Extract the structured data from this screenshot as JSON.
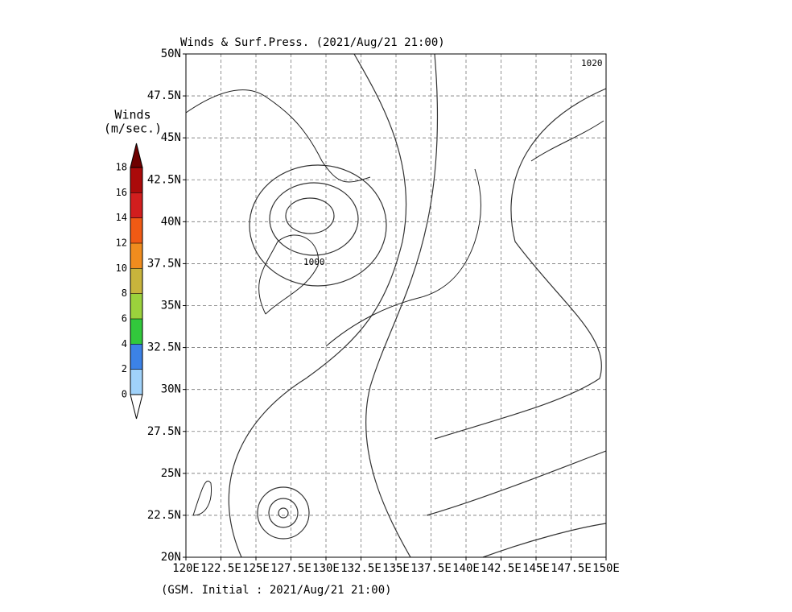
{
  "title": "Winds & Surf.Press. (2021/Aug/21 21:00)",
  "footer": "(GSM. Initial : 2021/Aug/21 21:00)",
  "map": {
    "xlim": [
      120,
      150
    ],
    "ylim": [
      20,
      50
    ],
    "xticks": [
      {
        "value": 120,
        "label": "120E"
      },
      {
        "value": 122.5,
        "label": "122.5E"
      },
      {
        "value": 125,
        "label": "125E"
      },
      {
        "value": 127.5,
        "label": "127.5E"
      },
      {
        "value": 130,
        "label": "130E"
      },
      {
        "value": 132.5,
        "label": "132.5E"
      },
      {
        "value": 135,
        "label": "135E"
      },
      {
        "value": 137.5,
        "label": "137.5E"
      },
      {
        "value": 140,
        "label": "140E"
      },
      {
        "value": 142.5,
        "label": "142.5E"
      },
      {
        "value": 145,
        "label": "145E"
      },
      {
        "value": 147.5,
        "label": "147.5E"
      },
      {
        "value": 150,
        "label": "150E"
      }
    ],
    "yticks": [
      {
        "value": 20,
        "label": "20N"
      },
      {
        "value": 22.5,
        "label": "22.5N"
      },
      {
        "value": 25,
        "label": "25N"
      },
      {
        "value": 27.5,
        "label": "27.5N"
      },
      {
        "value": 30,
        "label": "30N"
      },
      {
        "value": 32.5,
        "label": "32.5N"
      },
      {
        "value": 35,
        "label": "35N"
      },
      {
        "value": 37.5,
        "label": "37.5N"
      },
      {
        "value": 40,
        "label": "40N"
      },
      {
        "value": 42.5,
        "label": "42.5N"
      },
      {
        "value": 45,
        "label": "45N"
      },
      {
        "value": 47.5,
        "label": "47.5N"
      },
      {
        "value": 50,
        "label": "50N"
      }
    ],
    "grid": true,
    "isobar_labels": [
      "1000",
      "1020"
    ]
  },
  "colorbar": {
    "title": [
      "Winds",
      "(m/sec.)"
    ],
    "ticks": [
      0,
      2,
      4,
      6,
      8,
      10,
      12,
      14,
      16,
      18
    ],
    "colors": [
      "#ffffff",
      "#a0d2fa",
      "#3c82e6",
      "#32c83c",
      "#9bd23c",
      "#c8b43c",
      "#f08c1e",
      "#f05a14",
      "#d21e1e",
      "#aa0a0a",
      "#6e0000"
    ]
  }
}
